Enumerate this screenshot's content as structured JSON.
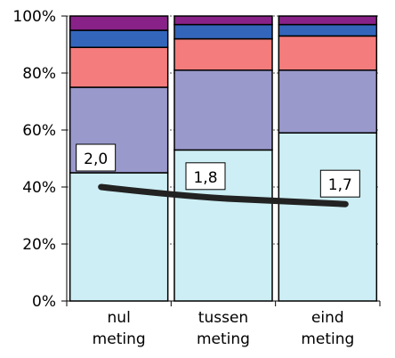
{
  "chart_data": {
    "type": "bar",
    "stacked": true,
    "percent_stacked": true,
    "categories": [
      [
        "nul",
        "meting"
      ],
      [
        "tussen",
        "meting"
      ],
      [
        "eind",
        "meting"
      ]
    ],
    "ylim": [
      0,
      100
    ],
    "yticks": [
      0,
      20,
      40,
      60,
      80,
      100
    ],
    "ytick_labels": [
      "0%",
      "20%",
      "40%",
      "60%",
      "80%",
      "100%"
    ],
    "grid": true,
    "series": [
      {
        "color": "#cceef4",
        "values": [
          45,
          53,
          59
        ]
      },
      {
        "color": "#9999cc",
        "values": [
          30,
          28,
          22
        ]
      },
      {
        "color": "#f47c7c",
        "values": [
          14,
          11,
          12
        ]
      },
      {
        "color": "#3366bb",
        "values": [
          6,
          5,
          4
        ]
      },
      {
        "color": "#882288",
        "values": [
          5,
          3,
          3
        ]
      }
    ],
    "line": {
      "color": "#222222",
      "values": [
        40,
        36,
        34
      ],
      "labels": [
        "2,0",
        "1,8",
        "1,7"
      ]
    }
  }
}
